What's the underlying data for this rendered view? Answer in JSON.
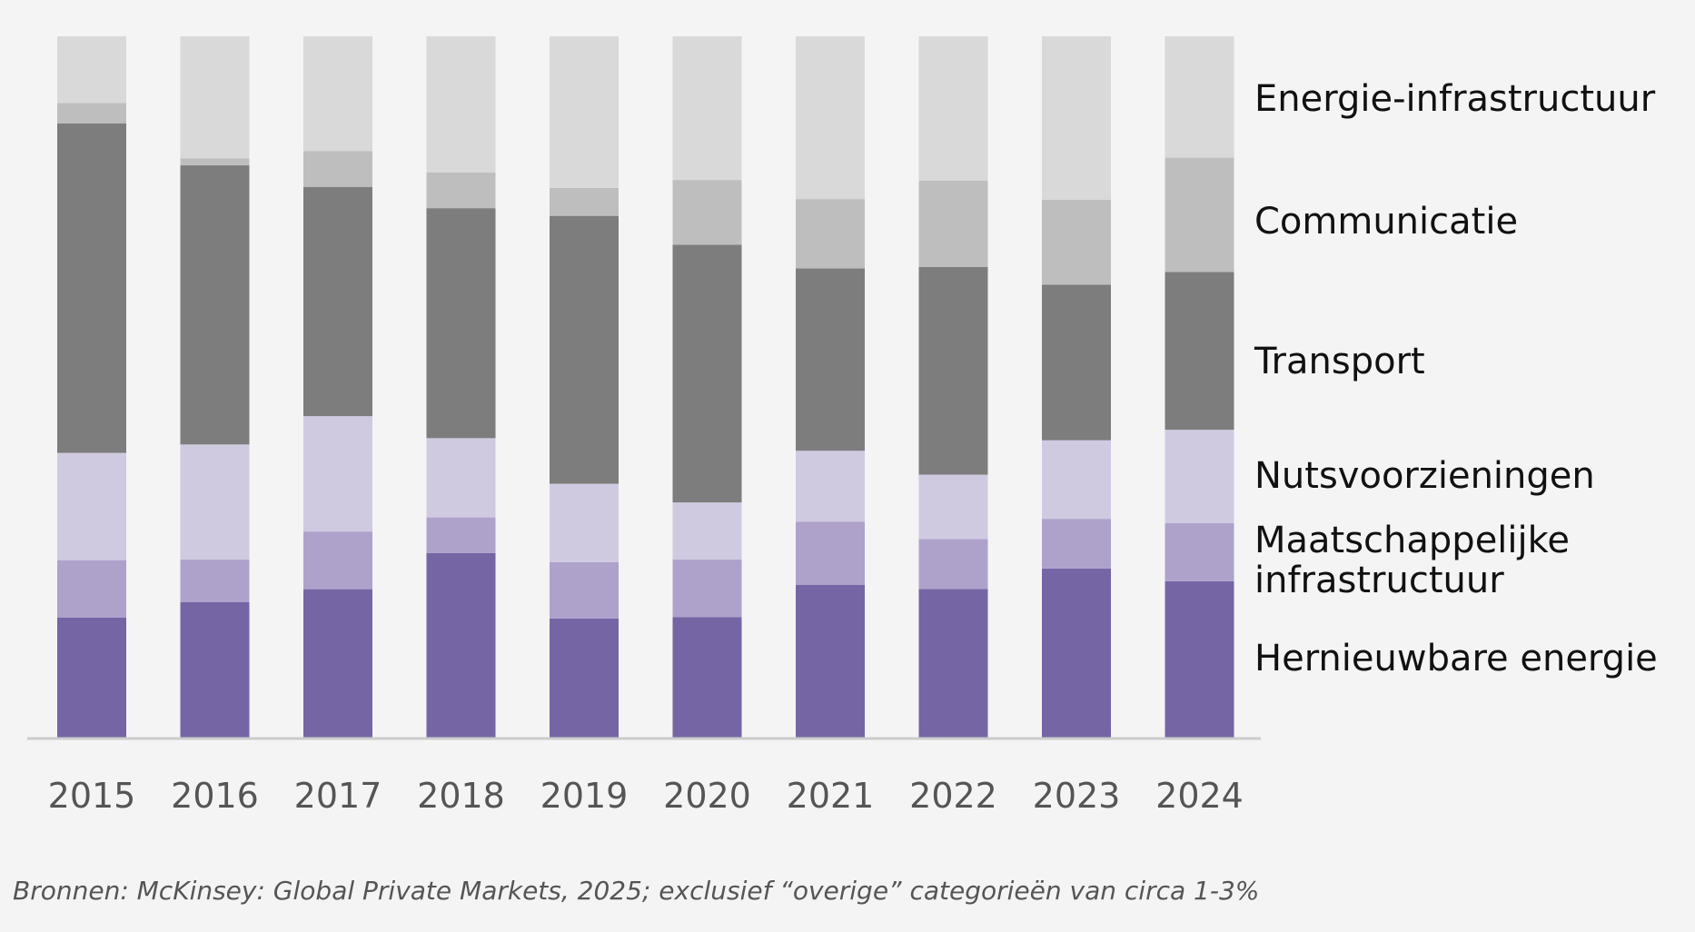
{
  "chart_data": {
    "type": "bar",
    "stacked": true,
    "normalized": true,
    "categories": [
      "2015",
      "2016",
      "2017",
      "2018",
      "2019",
      "2020",
      "2021",
      "2022",
      "2023",
      "2024"
    ],
    "ylim": [
      0,
      100
    ],
    "grid": false,
    "legend_placement": "right",
    "series": [
      {
        "name": "Hernieuwbare energie",
        "color": "#7565a5",
        "values": [
          17.1,
          19.3,
          21.1,
          26.3,
          17.0,
          17.1,
          21.8,
          21.2,
          24.1,
          22.3
        ]
      },
      {
        "name": "Maatschappelijke infrastructuur",
        "color": "#aea2cb",
        "values": [
          8.2,
          6.1,
          8.2,
          5.1,
          8.0,
          8.2,
          9.0,
          7.1,
          7.1,
          8.3
        ]
      },
      {
        "name": "Nutsvoorzieningen",
        "color": "#d0cae1",
        "values": [
          15.3,
          16.4,
          16.4,
          11.3,
          11.2,
          8.1,
          10.1,
          9.2,
          11.2,
          13.3
        ]
      },
      {
        "name": "Transport",
        "color": "#7d7d7d",
        "values": [
          47.0,
          39.8,
          32.6,
          32.8,
          38.2,
          36.6,
          26.0,
          29.6,
          22.2,
          22.5
        ]
      },
      {
        "name": "Communicatie",
        "color": "#bebebe",
        "values": [
          2.9,
          1.0,
          5.1,
          5.1,
          4.0,
          9.2,
          9.9,
          12.3,
          12.1,
          16.3
        ]
      },
      {
        "name": "Energie-infrastructuur",
        "color": "#d9d9d9",
        "values": [
          9.5,
          17.4,
          16.3,
          19.4,
          21.6,
          20.4,
          23.2,
          20.6,
          23.3,
          17.3
        ]
      }
    ],
    "legend": [
      "Energie-infrastructuur",
      "Communicatie",
      "Transport",
      "Nutsvoorzieningen",
      "Maatschappelijke infrastructuur",
      "Hernieuwbare energie"
    ]
  },
  "legend_lines": {
    "maatschappelijke_line1": "Maatschappelijke",
    "maatschappelijke_line2": "infrastructuur"
  },
  "footnote": "Bronnen: McKinsey: Global Private Markets, 2025; exclusief “overige” categorieën van circa 1-3%",
  "colors": {
    "background": "#f4f4f4",
    "axis": "#cccccc"
  }
}
